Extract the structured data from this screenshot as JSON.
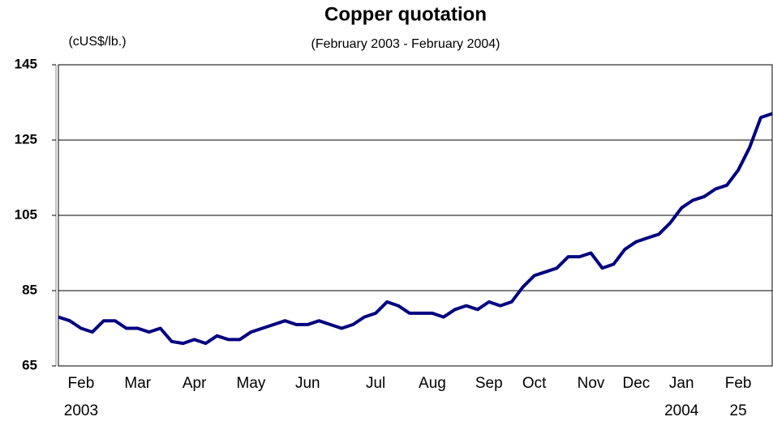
{
  "chart_data": {
    "type": "line",
    "title": "Copper quotation",
    "subtitle": "(February 2003 - February 2004)",
    "y_label": "(cUS$/lb.)",
    "categories": [
      null,
      null,
      "Feb",
      null,
      null,
      null,
      null,
      "Mar",
      null,
      null,
      null,
      null,
      "Apr",
      null,
      null,
      null,
      null,
      "May",
      null,
      null,
      null,
      null,
      "Jun",
      null,
      null,
      null,
      null,
      null,
      "Jul",
      null,
      null,
      null,
      null,
      "Aug",
      null,
      null,
      null,
      null,
      "Sep",
      null,
      null,
      null,
      "Oct",
      null,
      null,
      null,
      null,
      "Nov",
      null,
      null,
      null,
      "Dec",
      null,
      null,
      null,
      "Jan",
      null,
      null,
      null,
      null,
      "Feb",
      null,
      null,
      null
    ],
    "category_sublabels": [
      null,
      null,
      "2003",
      null,
      null,
      null,
      null,
      null,
      null,
      null,
      null,
      null,
      null,
      null,
      null,
      null,
      null,
      null,
      null,
      null,
      null,
      null,
      null,
      null,
      null,
      null,
      null,
      null,
      null,
      null,
      null,
      null,
      null,
      null,
      null,
      null,
      null,
      null,
      null,
      null,
      null,
      null,
      null,
      null,
      null,
      null,
      null,
      null,
      null,
      null,
      null,
      null,
      null,
      null,
      null,
      "2004",
      null,
      null,
      null,
      null,
      "25",
      null,
      null,
      null
    ],
    "series": [
      {
        "color": "#000080",
        "values": [
          78,
          77,
          75,
          74,
          77,
          77,
          75,
          75,
          74,
          75,
          71.5,
          71,
          72,
          71,
          73,
          72,
          72,
          74,
          75,
          76,
          77,
          76,
          76,
          77,
          76,
          75,
          76,
          78,
          79,
          82,
          81,
          79,
          79,
          79,
          78,
          80,
          81,
          80,
          82,
          81,
          82,
          86,
          89,
          90,
          91,
          94,
          94,
          95,
          91,
          92,
          96,
          98,
          99,
          100,
          103,
          107,
          109,
          110,
          112,
          113,
          117,
          123,
          131,
          132
        ]
      }
    ],
    "ylim": [
      65,
      145
    ],
    "yticks": [
      65,
      85,
      105,
      125,
      145
    ],
    "grid": true
  }
}
